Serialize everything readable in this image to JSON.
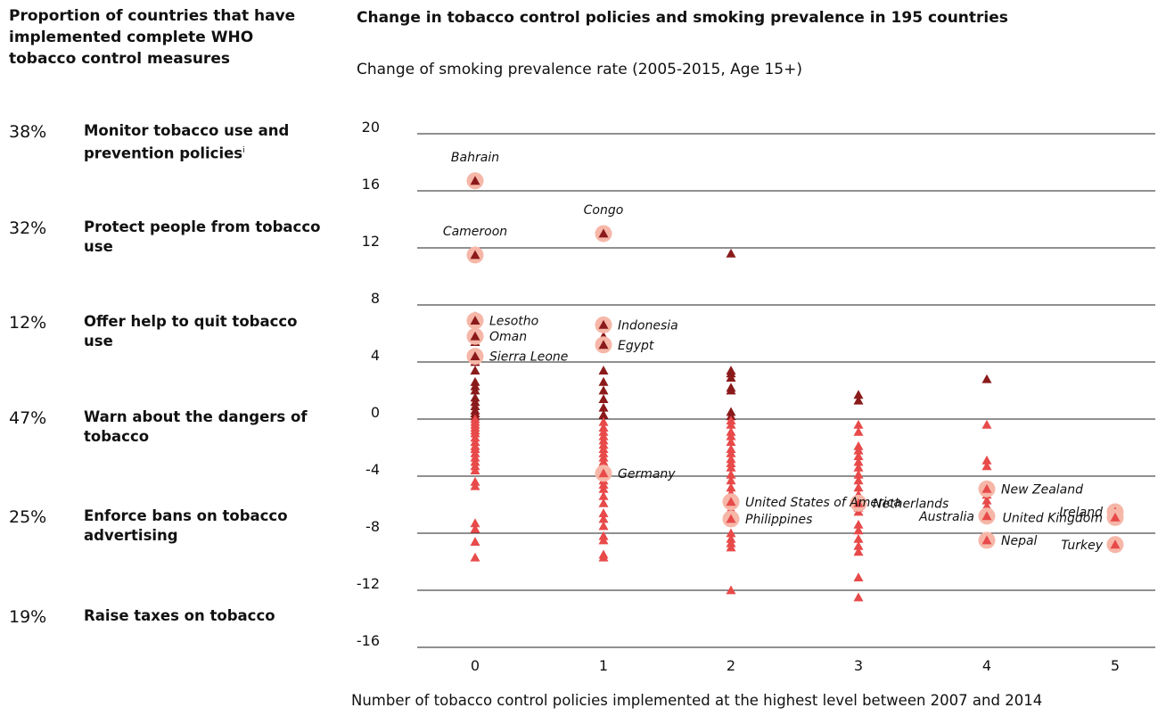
{
  "sidebar": {
    "title": "Proportion of countries that have implemented complete WHO tobacco control measures",
    "measures": [
      {
        "percent": "38%",
        "label": "Monitor tobacco use and prevention policies",
        "superscript": "i"
      },
      {
        "percent": "32%",
        "label": "Protect people from tobacco use"
      },
      {
        "percent": "12%",
        "label": "Offer help to quit tobacco use"
      },
      {
        "percent": "47%",
        "label": "Warn about the dangers of tobacco"
      },
      {
        "percent": "25%",
        "label": "Enforce bans on tobacco advertising"
      },
      {
        "percent": "19%",
        "label": "Raise taxes on tobacco"
      }
    ]
  },
  "chart_data": {
    "type": "scatter",
    "title": "Change in tobacco control policies and smoking prevalence in 195 countries",
    "ylabel": "Change of smoking prevalence rate (2005-2015, Age 15+)",
    "xlabel": "Number of tobacco control policies implemented at the highest level between 2007 and 2014",
    "x_ticks": [
      "0",
      "1",
      "2",
      "3",
      "4",
      "5"
    ],
    "y_ticks": [
      "20",
      "16",
      "12",
      "8",
      "4",
      "0",
      "-4",
      "-8",
      "-12",
      "-16"
    ],
    "ylim": [
      -16,
      20
    ],
    "xlim": [
      0,
      5
    ],
    "grid": "horizontal",
    "colors": {
      "default": "#e84a4a",
      "increase": "#8b1a1a",
      "highlight": "#f6b7a8"
    },
    "labeled_points": [
      {
        "name": "Bahrain",
        "x": 0,
        "y": 16.7,
        "label_pos": "above"
      },
      {
        "name": "Cameroon",
        "x": 0,
        "y": 11.5,
        "label_pos": "above"
      },
      {
        "name": "Lesotho",
        "x": 0,
        "y": 6.9,
        "label_pos": "right"
      },
      {
        "name": "Oman",
        "x": 0,
        "y": 5.8,
        "label_pos": "right"
      },
      {
        "name": "Sierra Leone",
        "x": 0,
        "y": 4.4,
        "label_pos": "right"
      },
      {
        "name": "Congo",
        "x": 1,
        "y": 13.0,
        "label_pos": "above"
      },
      {
        "name": "Indonesia",
        "x": 1,
        "y": 6.6,
        "label_pos": "right"
      },
      {
        "name": "Egypt",
        "x": 1,
        "y": 5.2,
        "label_pos": "right"
      },
      {
        "name": "Germany",
        "x": 1,
        "y": -3.8,
        "label_pos": "right"
      },
      {
        "name": "United States of America",
        "x": 2,
        "y": -5.8,
        "label_pos": "right"
      },
      {
        "name": "Philippines",
        "x": 2,
        "y": -7.0,
        "label_pos": "right"
      },
      {
        "name": "Netherlands",
        "x": 3,
        "y": -5.9,
        "label_pos": "right"
      },
      {
        "name": "New Zealand",
        "x": 4,
        "y": -4.9,
        "label_pos": "right"
      },
      {
        "name": "Australia",
        "x": 4,
        "y": -6.8,
        "label_pos": "left"
      },
      {
        "name": "Nepal",
        "x": 4,
        "y": -8.5,
        "label_pos": "right"
      },
      {
        "name": "Ireland",
        "x": 5,
        "y": -6.5,
        "label_pos": "left"
      },
      {
        "name": "United Kingdom",
        "x": 5,
        "y": -6.9,
        "label_pos": "left"
      },
      {
        "name": "Turkey",
        "x": 5,
        "y": -8.8,
        "label_pos": "left"
      }
    ],
    "points": [
      {
        "x": 0,
        "y": [
          7.2,
          6.3,
          5.4,
          4.0,
          3.4,
          2.6,
          2.3,
          2.0,
          1.5,
          1.2,
          0.9,
          0.6,
          0.4,
          0.2,
          0.0,
          -0.2,
          -0.4,
          -0.6,
          -0.8,
          -1.0,
          -1.3,
          -1.6,
          -1.9,
          -2.1,
          -2.4,
          -2.7,
          -3.0,
          -3.3,
          -3.6,
          -4.4,
          -4.7,
          -7.3,
          -7.7,
          -8.6,
          -9.7
        ]
      },
      {
        "x": 1,
        "y": [
          5.8,
          3.4,
          2.6,
          2.0,
          1.4,
          0.8,
          0.3,
          -0.2,
          -0.6,
          -0.9,
          -1.2,
          -1.5,
          -1.8,
          -2.1,
          -2.4,
          -2.7,
          -3.0,
          -3.3,
          -4.3,
          -4.6,
          -4.9,
          -5.4,
          -5.9,
          -6.6,
          -7.0,
          -7.5,
          -8.2,
          -8.5,
          -9.5,
          -9.7
        ]
      },
      {
        "x": 2,
        "y": [
          11.6,
          3.4,
          3.2,
          2.9,
          2.2,
          2.0,
          0.5,
          0.2,
          -0.1,
          -0.4,
          -0.9,
          -1.2,
          -1.6,
          -2.1,
          -2.4,
          -2.8,
          -3.1,
          -3.4,
          -3.9,
          -4.3,
          -4.8,
          -5.2,
          -6.3,
          -6.6,
          -8.0,
          -8.4,
          -8.7,
          -9.0,
          -12.0
        ]
      },
      {
        "x": 3,
        "y": [
          1.7,
          1.3,
          -0.4,
          -0.9,
          -1.9,
          -2.2,
          -2.6,
          -3.0,
          -3.4,
          -3.9,
          -4.3,
          -4.8,
          -5.3,
          -6.2,
          -6.5,
          -7.4,
          -7.8,
          -8.4,
          -8.9,
          -9.3,
          -11.1,
          -12.5
        ]
      },
      {
        "x": 4,
        "y": [
          2.8,
          -0.4,
          -2.9,
          -3.3,
          -5.3,
          -5.7,
          -6.1
        ]
      },
      {
        "x": 5,
        "y": [
          -7.1
        ]
      }
    ]
  }
}
